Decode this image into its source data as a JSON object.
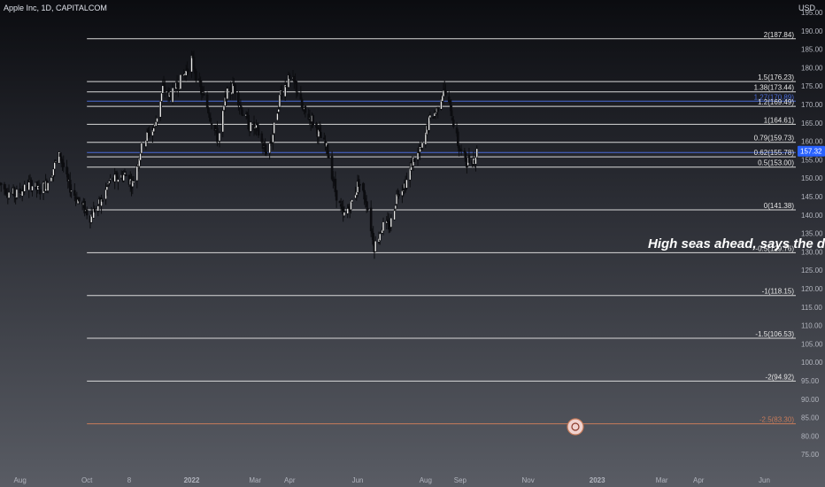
{
  "header": {
    "symbol_title": "Apple Inc, 1D, CAPITALCOM",
    "currency": "USD"
  },
  "overlay_text": "High seas ahead, says the dr",
  "colors": {
    "candle": "#0c0d10",
    "fib_line": "#d9d9d9",
    "fib_blue": "#4a6bd6",
    "fib_orange": "#c77b5a",
    "axis_text": "#b2b5be",
    "price_badge_bg": "#2962ff"
  },
  "chart_data": {
    "type": "candlestick",
    "y_range": [
      70.0,
      195.0
    ],
    "x_range": [
      "2021-07-15",
      "2023-06-30"
    ],
    "y_ticks": [
      75.0,
      80.0,
      85.0,
      90.0,
      95.0,
      100.0,
      105.0,
      110.0,
      115.0,
      120.0,
      125.0,
      130.0,
      135.0,
      140.0,
      145.0,
      150.0,
      155.0,
      160.0,
      165.0,
      170.0,
      175.0,
      180.0,
      185.0,
      190.0,
      195.0
    ],
    "x_ticks": [
      {
        "label": "Aug",
        "date": "2021-08-02"
      },
      {
        "label": "Oct",
        "date": "2021-10-01"
      },
      {
        "label": "8",
        "date": "2021-11-08"
      },
      {
        "label": "2022",
        "date": "2022-01-03"
      },
      {
        "label": "Mar",
        "date": "2022-03-01"
      },
      {
        "label": "Apr",
        "date": "2022-04-01"
      },
      {
        "label": "Jun",
        "date": "2022-06-01"
      },
      {
        "label": "Aug",
        "date": "2022-08-01"
      },
      {
        "label": "Sep",
        "date": "2022-09-01"
      },
      {
        "label": "Nov",
        "date": "2022-11-01"
      },
      {
        "label": "2023",
        "date": "2023-01-02"
      },
      {
        "label": "Mar",
        "date": "2023-03-01"
      },
      {
        "label": "Apr",
        "date": "2023-04-03"
      },
      {
        "label": "Jun",
        "date": "2023-06-01"
      }
    ],
    "last_price": {
      "value": 157.32,
      "label": "157.32"
    },
    "fib_levels": [
      {
        "ratio": "2",
        "value": 187.84,
        "label": "2(187.84)",
        "color": "#d9d9d9"
      },
      {
        "ratio": "1.5",
        "value": 176.23,
        "label": "1.5(176.23)",
        "color": "#d9d9d9"
      },
      {
        "ratio": "1.38",
        "value": 173.44,
        "label": "1.38(173.44)",
        "color": "#d9d9d9"
      },
      {
        "ratio": "1.27",
        "value": 170.89,
        "label": "1.27(170.89)",
        "color": "#4a6bd6"
      },
      {
        "ratio": "1.2",
        "value": 169.49,
        "label": "1.2(169.49)",
        "color": "#d9d9d9"
      },
      {
        "ratio": "1",
        "value": 164.61,
        "label": "1(164.61)",
        "color": "#d9d9d9"
      },
      {
        "ratio": "0.79",
        "value": 159.73,
        "label": "0.79(159.73)",
        "color": "#d9d9d9"
      },
      {
        "ratio": "0.65",
        "value": 156.97,
        "label": "",
        "color": "#4a6bd6"
      },
      {
        "ratio": "0.62",
        "value": 155.78,
        "label": "0.62(155.78)",
        "color": "#d9d9d9"
      },
      {
        "ratio": "0.5",
        "value": 153.0,
        "label": "0.5(153.00)",
        "color": "#d9d9d9"
      },
      {
        "ratio": "0",
        "value": 141.38,
        "label": "0(141.38)",
        "color": "#d9d9d9"
      },
      {
        "ratio": "-0.5",
        "value": 129.76,
        "label": "-0.5(129.76)",
        "color": "#d9d9d9"
      },
      {
        "ratio": "-1",
        "value": 118.15,
        "label": "-1(118.15)",
        "color": "#d9d9d9"
      },
      {
        "ratio": "-1.5",
        "value": 106.53,
        "label": "-1.5(106.53)",
        "color": "#d9d9d9"
      },
      {
        "ratio": "-2",
        "value": 94.92,
        "label": "-2(94.92)",
        "color": "#d9d9d9"
      },
      {
        "ratio": "-2.5",
        "value": 83.3,
        "label": "-2.5(83.30)",
        "color": "#c77b5a"
      }
    ],
    "fib_start_date": "2021-10-01",
    "price_path": [
      [
        "2021-07-15",
        148.5
      ],
      [
        "2021-07-22",
        146.5
      ],
      [
        "2021-07-29",
        145.5
      ],
      [
        "2021-08-05",
        147.0
      ],
      [
        "2021-08-12",
        148.5
      ],
      [
        "2021-08-19",
        146.5
      ],
      [
        "2021-08-26",
        148.5
      ],
      [
        "2021-09-02",
        153.5
      ],
      [
        "2021-09-07",
        156.5
      ],
      [
        "2021-09-14",
        148.5
      ],
      [
        "2021-09-21",
        145.0
      ],
      [
        "2021-09-28",
        142.0
      ],
      [
        "2021-10-04",
        139.5
      ],
      [
        "2021-10-08",
        141.5
      ],
      [
        "2021-10-14",
        143.5
      ],
      [
        "2021-10-21",
        149.0
      ],
      [
        "2021-10-28",
        150.0
      ],
      [
        "2021-11-04",
        151.0
      ],
      [
        "2021-11-11",
        148.5
      ],
      [
        "2021-11-18",
        157.5
      ],
      [
        "2021-11-24",
        161.5
      ],
      [
        "2021-12-01",
        164.0
      ],
      [
        "2021-12-08",
        174.5
      ],
      [
        "2021-12-15",
        172.0
      ],
      [
        "2021-12-22",
        175.5
      ],
      [
        "2021-12-29",
        179.0
      ],
      [
        "2022-01-03",
        182.5
      ],
      [
        "2022-01-10",
        175.0
      ],
      [
        "2022-01-18",
        168.5
      ],
      [
        "2022-01-27",
        160.0
      ],
      [
        "2022-02-03",
        172.5
      ],
      [
        "2022-02-10",
        175.0
      ],
      [
        "2022-02-17",
        168.5
      ],
      [
        "2022-02-24",
        164.0
      ],
      [
        "2022-03-03",
        163.0
      ],
      [
        "2022-03-10",
        157.0
      ],
      [
        "2022-03-16",
        160.5
      ],
      [
        "2022-03-24",
        173.5
      ],
      [
        "2022-03-31",
        176.5
      ],
      [
        "2022-04-06",
        175.5
      ],
      [
        "2022-04-13",
        168.0
      ],
      [
        "2022-04-21",
        166.0
      ],
      [
        "2022-04-28",
        161.5
      ],
      [
        "2022-05-05",
        157.5
      ],
      [
        "2022-05-12",
        146.5
      ],
      [
        "2022-05-19",
        139.5
      ],
      [
        "2022-05-26",
        143.0
      ],
      [
        "2022-06-02",
        149.0
      ],
      [
        "2022-06-09",
        143.5
      ],
      [
        "2022-06-16",
        131.5
      ],
      [
        "2022-06-23",
        137.0
      ],
      [
        "2022-06-30",
        137.0
      ],
      [
        "2022-07-07",
        146.5
      ],
      [
        "2022-07-14",
        148.5
      ],
      [
        "2022-07-21",
        155.0
      ],
      [
        "2022-07-28",
        157.5
      ],
      [
        "2022-08-04",
        165.5
      ],
      [
        "2022-08-11",
        168.5
      ],
      [
        "2022-08-17",
        174.5
      ],
      [
        "2022-08-24",
        168.0
      ],
      [
        "2022-08-31",
        158.0
      ],
      [
        "2022-09-07",
        154.5
      ],
      [
        "2022-09-14",
        155.5
      ],
      [
        "2022-09-16",
        157.3
      ]
    ]
  }
}
